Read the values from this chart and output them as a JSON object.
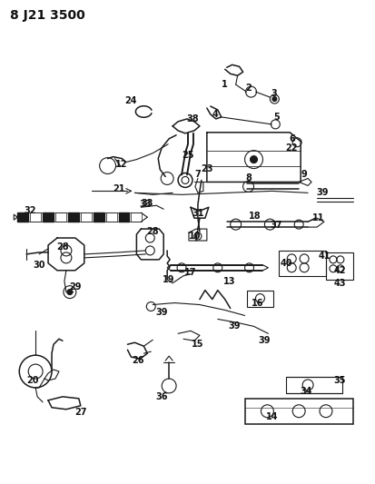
{
  "title": "8 J21 3500",
  "bg_color": "#ffffff",
  "line_color": "#1a1a1a",
  "title_fontsize": 10,
  "label_fontsize": 7,
  "fig_width": 4.14,
  "fig_height": 5.33,
  "dpi": 100,
  "label_color": "#111111"
}
